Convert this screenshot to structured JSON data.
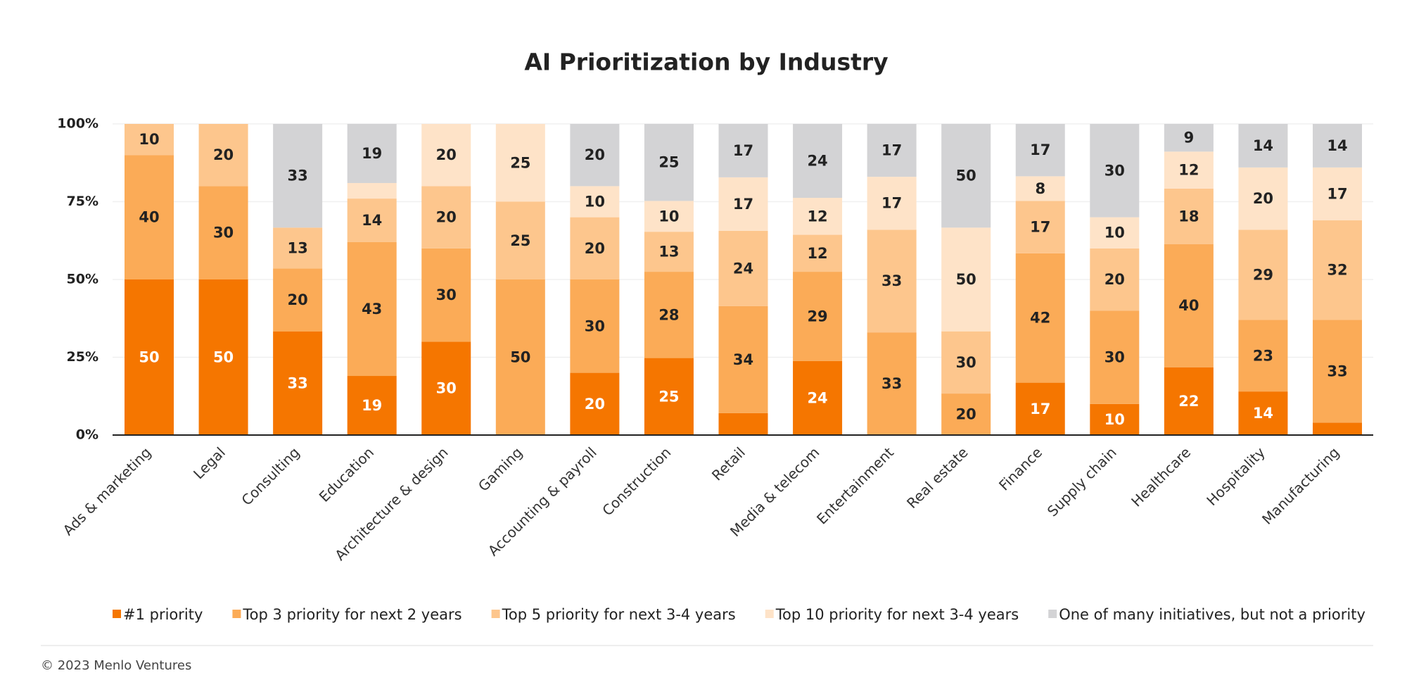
{
  "chart_data": {
    "type": "bar",
    "stacked": "percent",
    "title": "AI Prioritization by Industry",
    "categories": [
      "Ads & marketing",
      "Legal",
      "Consulting",
      "Education",
      "Architecture & design",
      "Gaming",
      "Accounting & payroll",
      "Construction",
      "Retail",
      "Media & telecom",
      "Entertainment",
      "Real estate",
      "Finance",
      "Supply chain",
      "Healthcare",
      "Hospitality",
      "Manufacturing"
    ],
    "series": [
      {
        "name": "#1 priority",
        "color": "#f57600",
        "values": [
          50,
          50,
          33,
          19,
          30,
          0,
          20,
          25,
          7,
          24,
          0,
          0,
          17,
          10,
          22,
          14,
          4
        ]
      },
      {
        "name": "Top 3 priority for next 2 years",
        "color": "#fbab57",
        "values": [
          40,
          30,
          20,
          43,
          30,
          50,
          30,
          28,
          34,
          29,
          33,
          20,
          42,
          30,
          40,
          23,
          33
        ]
      },
      {
        "name": "Top 5 priority for next 3-4 years",
        "color": "#fdc68d",
        "values": [
          10,
          20,
          13,
          14,
          20,
          25,
          20,
          13,
          24,
          12,
          33,
          30,
          17,
          20,
          18,
          29,
          32
        ]
      },
      {
        "name": "Top 10 priority for next 3-4 years",
        "color": "#fee3c8",
        "values": [
          0,
          0,
          0,
          5,
          20,
          25,
          10,
          10,
          17,
          12,
          17,
          50,
          8,
          10,
          12,
          20,
          17
        ]
      },
      {
        "name": "One of many initiatives, but not a priority",
        "color": "#d3d3d5",
        "values": [
          0,
          0,
          33,
          19,
          0,
          0,
          20,
          25,
          17,
          24,
          17,
          50,
          17,
          30,
          9,
          14,
          14
        ]
      }
    ],
    "ylim": [
      0,
      100
    ],
    "yticks": [
      {
        "value": 0,
        "label": "0%"
      },
      {
        "value": 25,
        "label": "25%"
      },
      {
        "value": 50,
        "label": "50%"
      },
      {
        "value": 75,
        "label": "75%"
      },
      {
        "value": 100,
        "label": "100%"
      }
    ],
    "grid": true,
    "source": "© 2023 Menlo Ventures"
  }
}
